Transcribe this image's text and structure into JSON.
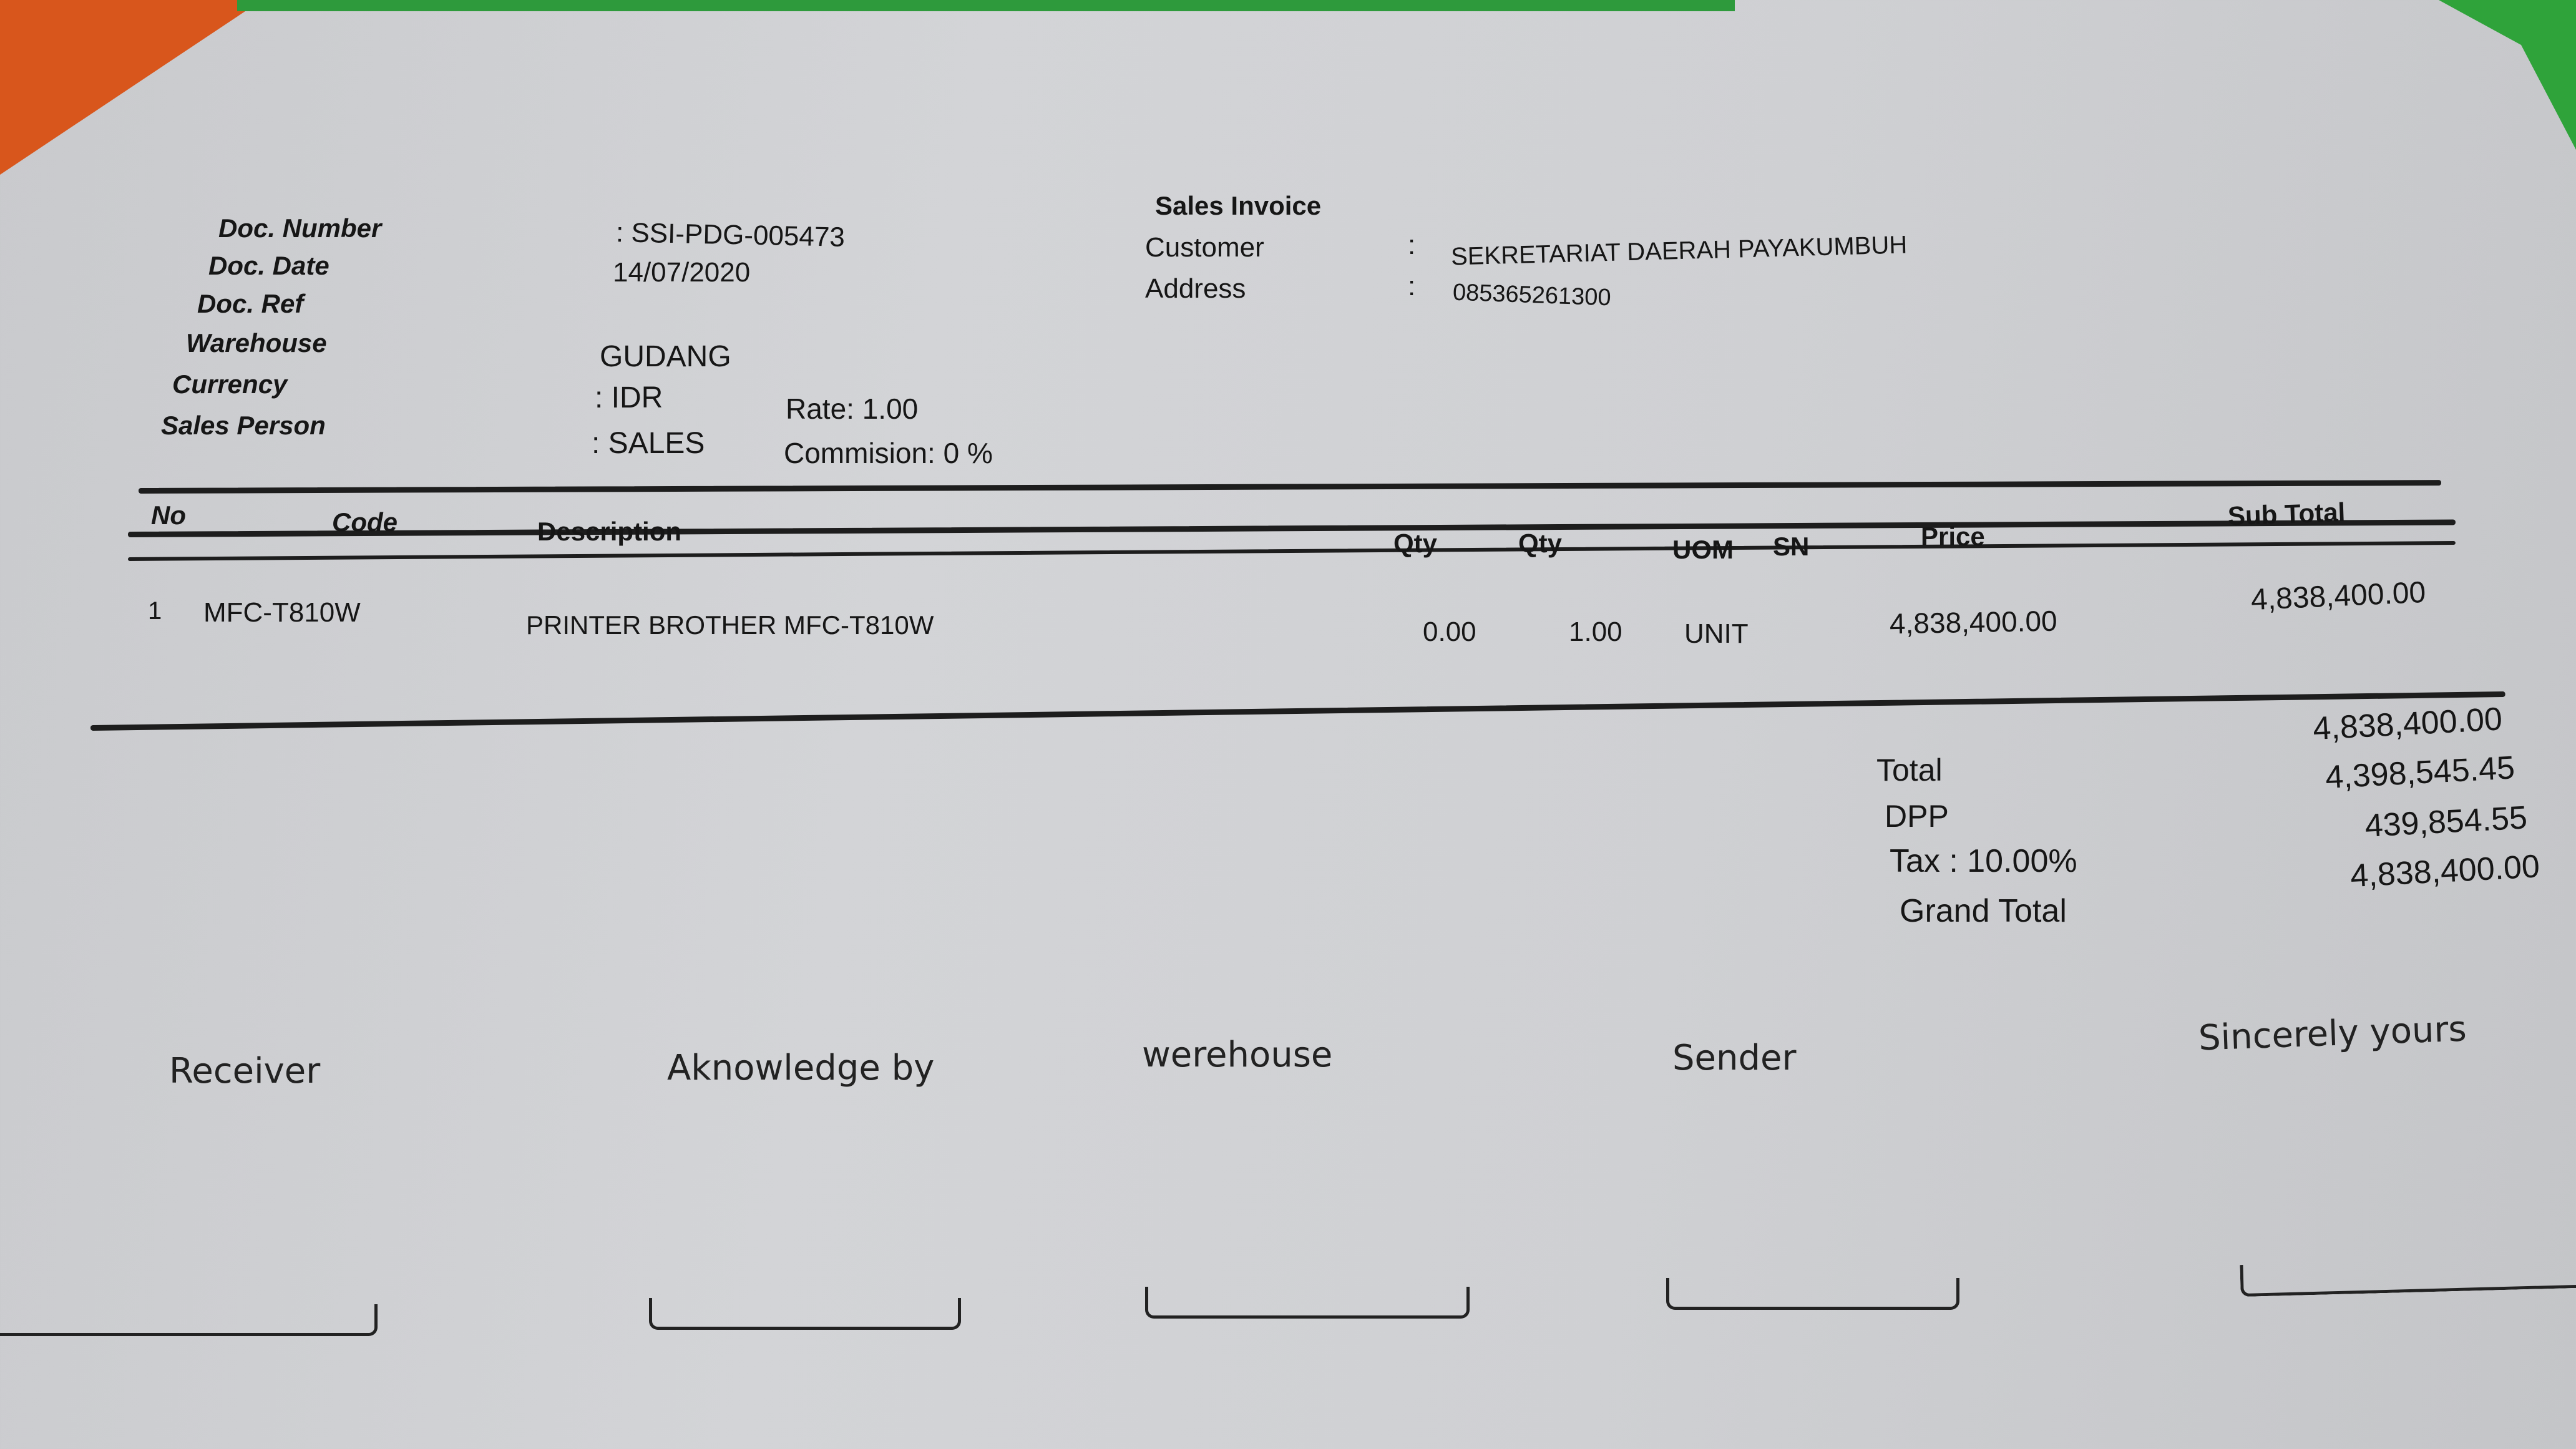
{
  "title": "Sales Invoice",
  "header_left": [
    {
      "label": "Doc. Number",
      "value": ": SSI-PDG-005473"
    },
    {
      "label": "Doc. Date",
      "value": "14/07/2020"
    },
    {
      "label": "Doc. Ref",
      "value": ""
    },
    {
      "label": "Warehouse",
      "value": "GUDANG"
    },
    {
      "label": "Currency",
      "value": ": IDR"
    },
    {
      "label": "Sales Person",
      "value": ": SALES"
    }
  ],
  "rate": "Rate: 1.00",
  "commission": "Commision: 0 %",
  "customer": {
    "label": "Customer",
    "colon": ":",
    "value": "SEKRETARIAT DAERAH PAYAKUMBUH"
  },
  "address": {
    "label": "Address",
    "colon": ":",
    "value": "085365261300"
  },
  "table": {
    "columns": [
      "No",
      "Code",
      "Description",
      "Qty",
      "Qty",
      "UOM",
      "SN",
      "Price",
      "Sub Total"
    ],
    "rows": [
      {
        "no": "1",
        "code": "MFC-T810W",
        "description": "PRINTER BROTHER MFC-T810W",
        "qty1": "0.00",
        "qty2": "1.00",
        "uom": "UNIT",
        "sn": "",
        "price": "4,838,400.00",
        "subtotal": "4,838,400.00"
      }
    ]
  },
  "totals": [
    {
      "label": "Total",
      "value": "4,838,400.00"
    },
    {
      "label": "DPP",
      "value": "4,398,545.45"
    },
    {
      "label": "Tax : 10.00%",
      "value": "439,854.55"
    },
    {
      "label": "Grand Total",
      "value": "4,838,400.00"
    }
  ],
  "signatures": [
    "Receiver",
    "Aknowledge by",
    "werehouse",
    "Sender",
    "Sincerely yours"
  ],
  "colors": {
    "paper": "#cfd0d3",
    "ink": "#161616",
    "corner_orange": "#d8561c",
    "corner_green": "#2fa33a"
  }
}
